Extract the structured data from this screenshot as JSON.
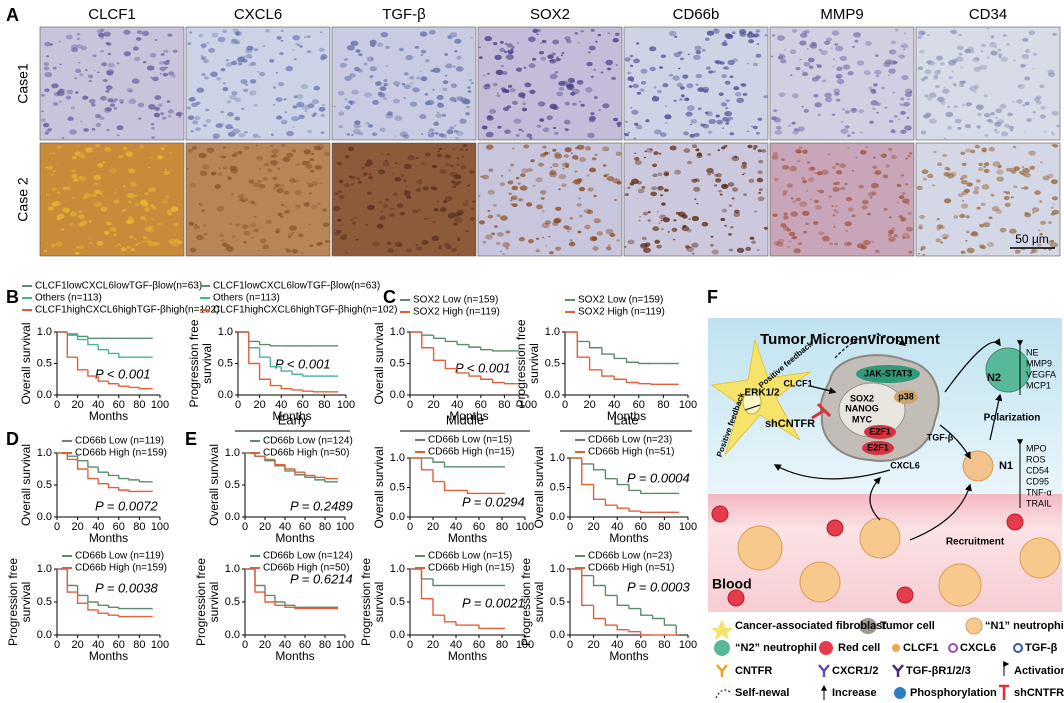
{
  "panel_labels": [
    "A",
    "B",
    "C",
    "D",
    "E",
    "F"
  ],
  "panel_a": {
    "columns": [
      "CLCF1",
      "CXCL6",
      "TGF-β",
      "SOX2",
      "CD66b",
      "MMP9",
      "CD34"
    ],
    "rows": [
      "Case1",
      "Case 2"
    ],
    "scale_bar": "50 μm"
  },
  "stage_headers": [
    "Early",
    "Middle",
    "Late"
  ],
  "chart_data": [
    {
      "type": "line",
      "ylabel": [
        "Overall survival"
      ],
      "xlabel": "Months",
      "annotation": "P < 0.001",
      "x": [
        0,
        10,
        20,
        30,
        40,
        50,
        60,
        70,
        80,
        90
      ],
      "series": [
        {
          "name": "CLCF1lowCXCL6lowTGF-βlow(n=63)",
          "color": "#5b8c6b",
          "values": [
            1,
            0.97,
            0.93,
            0.9,
            0.9,
            0.9,
            0.9,
            0.9,
            0.9,
            0.9
          ]
        },
        {
          "name": "Others (n=113)",
          "color": "#47b39a",
          "values": [
            1,
            0.95,
            0.88,
            0.8,
            0.72,
            0.66,
            0.6,
            0.6,
            0.6,
            0.6
          ]
        },
        {
          "name": "CLCF1highCXCL6highTGF-βhigh(n=102)",
          "color": "#e0603a",
          "values": [
            1,
            0.6,
            0.4,
            0.3,
            0.22,
            0.18,
            0.14,
            0.12,
            0.1,
            0.1
          ]
        }
      ],
      "xlim": [
        0,
        100
      ],
      "ylim": [
        0,
        1
      ],
      "xticks": [
        0,
        20,
        40,
        60,
        80,
        100
      ],
      "yticks": [
        {
          "value": 0,
          "label": "0.0"
        },
        {
          "value": 0.5,
          "label": "0.5"
        },
        {
          "value": 1,
          "label": "1.0"
        }
      ]
    },
    {
      "type": "line",
      "ylabel": [
        "Progression free",
        "survival"
      ],
      "xlabel": "Months",
      "annotation": "P < 0.001",
      "x": [
        0,
        10,
        20,
        30,
        40,
        50,
        60,
        70,
        80,
        90
      ],
      "series": [
        {
          "name": "CLCF1lowCXCL6lowTGF-βlow(n=63)",
          "color": "#5b8c6b",
          "values": [
            1,
            0.85,
            0.8,
            0.78,
            0.78,
            0.78,
            0.78,
            0.78,
            0.78,
            0.78
          ]
        },
        {
          "name": "Others (n=113)",
          "color": "#47b39a",
          "values": [
            1,
            0.75,
            0.6,
            0.45,
            0.38,
            0.33,
            0.3,
            0.3,
            0.3,
            0.3
          ]
        },
        {
          "name": "CLCF1highCXCL6highTGF-βhigh(n=102)",
          "color": "#e0603a",
          "values": [
            1,
            0.5,
            0.25,
            0.15,
            0.1,
            0.08,
            0.06,
            0.05,
            0.05,
            0.05
          ]
        }
      ],
      "xlim": [
        0,
        100
      ],
      "ylim": [
        0,
        1
      ],
      "xticks": [
        0,
        20,
        40,
        60,
        80,
        100
      ],
      "yticks": [
        {
          "value": 0,
          "label": "0.0"
        },
        {
          "value": 0.5,
          "label": "0.5"
        },
        {
          "value": 1,
          "label": "1.0"
        }
      ]
    },
    {
      "type": "line",
      "ylabel": [
        "Overall survival"
      ],
      "xlabel": "Months",
      "annotation": "P < 0.001",
      "x": [
        0,
        10,
        20,
        30,
        40,
        50,
        60,
        70,
        80,
        90
      ],
      "series": [
        {
          "name": "SOX2 Low (n=159)",
          "color": "#5b8c6b",
          "values": [
            1,
            0.95,
            0.9,
            0.85,
            0.8,
            0.76,
            0.72,
            0.7,
            0.7,
            0.7
          ]
        },
        {
          "name": "SOX2 High (n=119)",
          "color": "#e0603a",
          "values": [
            1,
            0.75,
            0.55,
            0.42,
            0.35,
            0.3,
            0.25,
            0.2,
            0.18,
            0.18
          ]
        }
      ],
      "xlim": [
        0,
        100
      ],
      "ylim": [
        0,
        1
      ],
      "xticks": [
        0,
        20,
        40,
        60,
        80,
        100
      ],
      "yticks": [
        {
          "value": 0,
          "label": "0.0"
        },
        {
          "value": 0.5,
          "label": "0.5"
        },
        {
          "value": 1,
          "label": "1.0"
        }
      ]
    },
    {
      "type": "line",
      "ylabel": [
        "Progression free",
        "survival"
      ],
      "xlabel": "Months",
      "x": [
        0,
        10,
        20,
        30,
        40,
        50,
        60,
        70,
        80,
        90
      ],
      "series": [
        {
          "name": "SOX2 Low (n=159)",
          "color": "#5b8c6b",
          "values": [
            1,
            0.85,
            0.75,
            0.65,
            0.58,
            0.52,
            0.5,
            0.5,
            0.5,
            0.5
          ]
        },
        {
          "name": "SOX2 High (n=119)",
          "color": "#e0603a",
          "values": [
            1,
            0.6,
            0.4,
            0.3,
            0.25,
            0.2,
            0.18,
            0.17,
            0.17,
            0.17
          ]
        }
      ],
      "xlim": [
        0,
        100
      ],
      "ylim": [
        0,
        1
      ],
      "xticks": [
        0,
        20,
        40,
        60,
        80,
        100
      ],
      "yticks": [
        {
          "value": 0,
          "label": "0.0"
        },
        {
          "value": 0.5,
          "label": "0.5"
        },
        {
          "value": 1,
          "label": "1.0"
        }
      ]
    },
    {
      "type": "line",
      "ylabel": [
        "Overall survival"
      ],
      "xlabel": "Months",
      "annotation": "P = 0.0072",
      "x": [
        0,
        10,
        20,
        30,
        40,
        50,
        60,
        70,
        80,
        90
      ],
      "series": [
        {
          "name": "CD66b Low (n=119)",
          "color": "#5b8c6b",
          "values": [
            1,
            0.95,
            0.88,
            0.78,
            0.7,
            0.65,
            0.6,
            0.58,
            0.55,
            0.55
          ]
        },
        {
          "name": "CD66b High (n=159)",
          "color": "#e0603a",
          "values": [
            1,
            0.9,
            0.75,
            0.6,
            0.52,
            0.46,
            0.42,
            0.4,
            0.4,
            0.4
          ]
        }
      ],
      "xlim": [
        0,
        100
      ],
      "ylim": [
        0,
        1
      ],
      "xticks": [
        0,
        20,
        40,
        60,
        80,
        100
      ],
      "yticks": [
        {
          "value": 0,
          "label": "0.0"
        },
        {
          "value": 0.5,
          "label": "0.5"
        },
        {
          "value": 1,
          "label": "1.0"
        }
      ]
    },
    {
      "type": "line",
      "ylabel": [
        "Progression free",
        "survival"
      ],
      "xlabel": "Months",
      "annotation": "P = 0.0038",
      "x": [
        0,
        10,
        20,
        30,
        40,
        50,
        60,
        70,
        80,
        90
      ],
      "series": [
        {
          "name": "CD66b Low (n=119)",
          "color": "#5b8c6b",
          "values": [
            1,
            0.75,
            0.6,
            0.5,
            0.45,
            0.42,
            0.4,
            0.4,
            0.4,
            0.4
          ]
        },
        {
          "name": "CD66b High (n=159)",
          "color": "#e0603a",
          "values": [
            1,
            0.65,
            0.48,
            0.38,
            0.33,
            0.3,
            0.28,
            0.28,
            0.28,
            0.28
          ]
        }
      ],
      "xlim": [
        0,
        100
      ],
      "ylim": [
        0,
        1
      ],
      "xticks": [
        0,
        20,
        40,
        60,
        80,
        100
      ],
      "yticks": [
        {
          "value": 0,
          "label": "0.0"
        },
        {
          "value": 0.5,
          "label": "0.5"
        },
        {
          "value": 1,
          "label": "1.0"
        }
      ]
    },
    {
      "type": "line",
      "ylabel": [
        "Overall survival"
      ],
      "xlabel": "Months",
      "annotation": "P = 0.2489",
      "x": [
        0,
        10,
        20,
        30,
        40,
        50,
        60,
        70,
        80,
        90
      ],
      "series": [
        {
          "name": "CD66b Low (n=124)",
          "color": "#5b8c6b",
          "values": [
            1,
            0.95,
            0.88,
            0.8,
            0.72,
            0.66,
            0.62,
            0.58,
            0.55,
            0.55
          ]
        },
        {
          "name": "CD66b High (n=50)",
          "color": "#e0603a",
          "values": [
            1,
            0.95,
            0.9,
            0.82,
            0.75,
            0.7,
            0.65,
            0.62,
            0.6,
            0.6
          ]
        }
      ],
      "xlim": [
        0,
        100
      ],
      "ylim": [
        0,
        1
      ],
      "xticks": [
        0,
        20,
        40,
        60,
        80,
        100
      ],
      "yticks": [
        {
          "value": 0,
          "label": "0.0"
        },
        {
          "value": 0.5,
          "label": "0.5"
        },
        {
          "value": 1,
          "label": "1.0"
        }
      ]
    },
    {
      "type": "line",
      "ylabel": [
        "Overall survival"
      ],
      "xlabel": "Months",
      "annotation": "P = 0.0294",
      "x": [
        0,
        10,
        20,
        30,
        40,
        50,
        60,
        70,
        80
      ],
      "series": [
        {
          "name": "CD66b Low (n=15)",
          "color": "#5b8c6b",
          "values": [
            1,
            1,
            0.93,
            0.85,
            0.85,
            0.85,
            0.85,
            0.85,
            0.85
          ]
        },
        {
          "name": "CD66b High (n=15)",
          "color": "#e0603a",
          "values": [
            1,
            0.8,
            0.6,
            0.45,
            0.45,
            0.4,
            0.4,
            0.4,
            0.4
          ]
        }
      ],
      "xlim": [
        0,
        100
      ],
      "ylim": [
        0,
        1
      ],
      "xticks": [
        0,
        20,
        40,
        60,
        80,
        100
      ],
      "yticks": [
        {
          "value": 0,
          "label": "0.0"
        },
        {
          "value": 0.5,
          "label": "0.5"
        },
        {
          "value": 1,
          "label": "1.0"
        }
      ]
    },
    {
      "type": "line",
      "ylabel": [
        "Overall survival"
      ],
      "xlabel": "Months",
      "annotation": "P = 0.0004",
      "x": [
        0,
        10,
        20,
        30,
        40,
        50,
        60,
        70,
        80,
        90
      ],
      "series": [
        {
          "name": "CD66b Low (n=23)",
          "color": "#5b8c6b",
          "values": [
            1,
            0.9,
            0.8,
            0.65,
            0.55,
            0.45,
            0.4,
            0.4,
            0.4,
            0.4
          ]
        },
        {
          "name": "CD66b High (n=51)",
          "color": "#e0603a",
          "values": [
            1,
            0.55,
            0.3,
            0.2,
            0.15,
            0.1,
            0.08,
            0.08,
            0.08,
            0.08
          ]
        }
      ],
      "xlim": [
        0,
        100
      ],
      "ylim": [
        0,
        1
      ],
      "xticks": [
        0,
        20,
        40,
        60,
        80,
        100
      ],
      "yticks": [
        {
          "value": 0,
          "label": "0.0"
        },
        {
          "value": 0.5,
          "label": "0.5"
        },
        {
          "value": 1,
          "label": "1.0"
        }
      ]
    },
    {
      "type": "line",
      "ylabel": [
        "Progression free",
        "survival"
      ],
      "xlabel": "Months",
      "annotation": "P = 0.6214",
      "x": [
        0,
        10,
        20,
        30,
        40,
        50,
        60,
        70,
        80,
        90
      ],
      "series": [
        {
          "name": "CD66b Low (n=124)",
          "color": "#5b8c6b",
          "values": [
            1,
            0.75,
            0.6,
            0.5,
            0.45,
            0.42,
            0.42,
            0.42,
            0.42,
            0.42
          ]
        },
        {
          "name": "CD66b High (n=50)",
          "color": "#e0603a",
          "values": [
            1,
            0.65,
            0.5,
            0.45,
            0.42,
            0.4,
            0.4,
            0.4,
            0.4,
            0.4
          ]
        }
      ],
      "xlim": [
        0,
        100
      ],
      "ylim": [
        0,
        1
      ],
      "xticks": [
        0,
        20,
        40,
        60,
        80,
        100
      ],
      "yticks": [
        {
          "value": 0,
          "label": "0.0"
        },
        {
          "value": 0.5,
          "label": "0.5"
        },
        {
          "value": 1,
          "label": "1.0"
        }
      ]
    },
    {
      "type": "line",
      "ylabel": [
        "Progression free",
        "survival"
      ],
      "xlabel": "Months",
      "annotation": "P = 0.0021",
      "x": [
        0,
        10,
        20,
        30,
        40,
        50,
        60,
        70,
        80
      ],
      "series": [
        {
          "name": "CD66b Low (n=15)",
          "color": "#5b8c6b",
          "values": [
            1,
            0.85,
            0.75,
            0.75,
            0.75,
            0.75,
            0.75,
            0.75,
            0.75
          ]
        },
        {
          "name": "CD66b High (n=15)",
          "color": "#e0603a",
          "values": [
            1,
            0.55,
            0.3,
            0.2,
            0.15,
            0.15,
            0.1,
            0.1,
            0.1
          ]
        }
      ],
      "xlim": [
        0,
        100
      ],
      "ylim": [
        0,
        1
      ],
      "xticks": [
        0,
        20,
        40,
        60,
        80,
        100
      ],
      "yticks": [
        {
          "value": 0,
          "label": "0.0"
        },
        {
          "value": 0.5,
          "label": "0.5"
        },
        {
          "value": 1,
          "label": "1.0"
        }
      ]
    },
    {
      "type": "line",
      "ylabel": [
        "Progression free",
        "survival"
      ],
      "xlabel": "Months",
      "annotation": "P = 0.0003",
      "x": [
        0,
        10,
        20,
        30,
        40,
        50,
        60,
        70,
        80,
        90
      ],
      "series": [
        {
          "name": "CD66b Low (n=23)",
          "color": "#5b8c6b",
          "values": [
            1,
            0.9,
            0.75,
            0.6,
            0.45,
            0.4,
            0.3,
            0.25,
            0.15,
            0
          ]
        },
        {
          "name": "CD66b High (n=51)",
          "color": "#e0603a",
          "values": [
            1,
            0.45,
            0.25,
            0.15,
            0.08,
            0.05,
            0,
            0,
            0,
            0
          ]
        }
      ],
      "xlim": [
        0,
        100
      ],
      "ylim": [
        0,
        1
      ],
      "xticks": [
        0,
        20,
        40,
        60,
        80,
        100
      ],
      "yticks": [
        {
          "value": 0,
          "label": "0.0"
        },
        {
          "value": 0.5,
          "label": "0.5"
        },
        {
          "value": 1,
          "label": "1.0"
        }
      ]
    }
  ],
  "diagram": {
    "labels": [
      "Tumor Microenvironment",
      "ERK1/2",
      "Positive feedback",
      "Positive feedback",
      "CLCF1",
      "shCNTFR",
      "JAK-STAT3",
      "p38",
      "SOX2",
      "NANOG",
      "MYC",
      "E2F1",
      "E2F1",
      "TGF-β",
      "CXCL6",
      "N2",
      "NE",
      "MMP9",
      "VEGFA",
      "MCP1",
      "Polarization",
      "N1",
      "MPO",
      "ROS",
      "CD54",
      "CD95",
      "TNF-α",
      "TRAIL",
      "Recruitment",
      "Blood"
    ],
    "legend": [
      "Cancer-associated fibroblast",
      "Tumor cell",
      "“N1” neutrophil",
      "“N2” neutrophil",
      "Red cell",
      "CLCF1",
      "CXCL6",
      "TGF-β",
      "CNTFR",
      "CXCR1/2",
      "TGF-βR1/2/3",
      "Activation",
      "Self-newal",
      "Increase",
      "Phosphorylation",
      "shCNTFR"
    ]
  }
}
